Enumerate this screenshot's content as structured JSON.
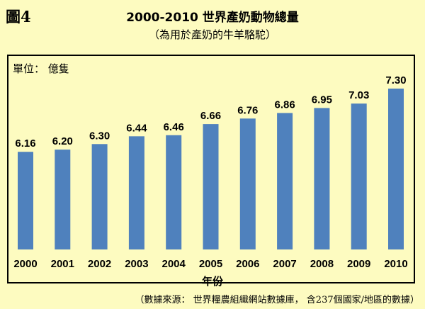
{
  "figure_label": "圖4",
  "subtitle": "（為用於產奶的牛羊駱駝）",
  "unit_label": "單位： 億隻",
  "source_note": "（數據來源： 世界糧農組織網站數據庫， 含237個國家/地區的數據）",
  "colors": {
    "background": "#fdfbc0",
    "bar": "#4f81bd"
  },
  "chart_data": {
    "type": "bar",
    "title": "2000-2010 世界產奶動物總量",
    "xlabel": "年份",
    "ylabel": "",
    "categories": [
      "2000",
      "2001",
      "2002",
      "2003",
      "2004",
      "2005",
      "2006",
      "2007",
      "2008",
      "2009",
      "2010"
    ],
    "values": [
      6.16,
      6.2,
      6.3,
      6.44,
      6.46,
      6.66,
      6.76,
      6.86,
      6.95,
      7.03,
      7.3
    ],
    "data_labels": [
      "6.16",
      "6.20",
      "6.30",
      "6.44",
      "6.46",
      "6.66",
      "6.76",
      "6.86",
      "6.95",
      "7.03",
      "7.30"
    ],
    "grid": false,
    "legend": "none"
  }
}
